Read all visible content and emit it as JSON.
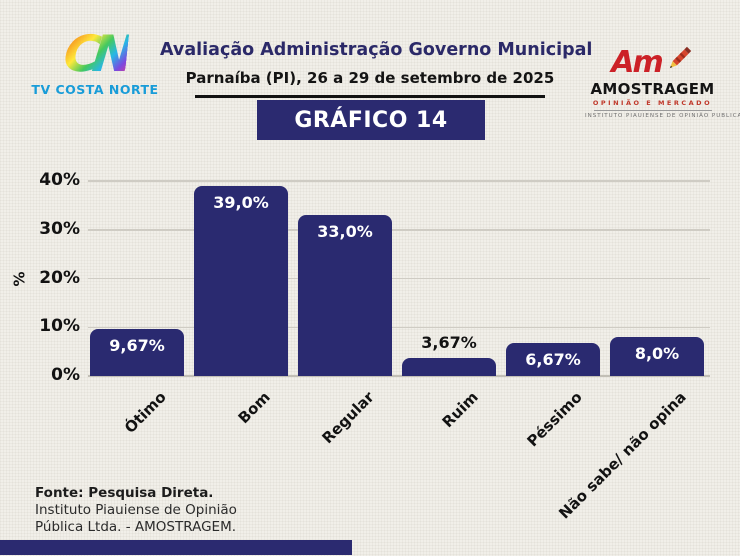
{
  "header": {
    "logo_left": {
      "monogram": "CN",
      "name": "TV COSTA NORTE"
    },
    "title": "Avaliação Administração Governo Municipal",
    "subtitle": "Parnaíba (PI), 26 a 29 de setembro de 2025",
    "badge": "GRÁFICO 14",
    "logo_right": {
      "monogram": "Am",
      "name": "AMOSTRAGEM",
      "tagline": "OPINIÃO E MERCADO",
      "institute": "INSTITUTO PIAUIENSE DE OPINIÃO PUBLICA"
    }
  },
  "chart_data": {
    "type": "bar",
    "title": "Avaliação Administração Governo Municipal",
    "categories": [
      "Ótimo",
      "Bom",
      "Regular",
      "Ruim",
      "Péssimo",
      "Não sabe/ não opina"
    ],
    "values": [
      9.67,
      39.0,
      33.0,
      3.67,
      6.67,
      8.0
    ],
    "value_labels": [
      "9,67%",
      "39,0%",
      "33,0%",
      "3,67%",
      "6,67%",
      "8,0%"
    ],
    "xlabel": "",
    "ylabel": "%",
    "ylim": [
      0,
      40
    ],
    "yticks": [
      0,
      10,
      20,
      30,
      40
    ],
    "ytick_labels": [
      "0%",
      "10%",
      "20%",
      "30%",
      "40%"
    ],
    "grid": true,
    "legend": false,
    "bar_color": "#2a2a70",
    "value_label_color_inside": "#ffffff",
    "value_label_color_outside": "#121212"
  },
  "footer": {
    "line1": "Fonte: Pesquisa Direta.",
    "line2": "Instituto Piauiense de Opinião",
    "line3": "Pública Ltda. - AMOSTRAGEM."
  },
  "colors": {
    "navy": "#2b2a70",
    "background": "#f1efe9",
    "tv_blue": "#189cd8",
    "logo_red": "#cc2127"
  }
}
